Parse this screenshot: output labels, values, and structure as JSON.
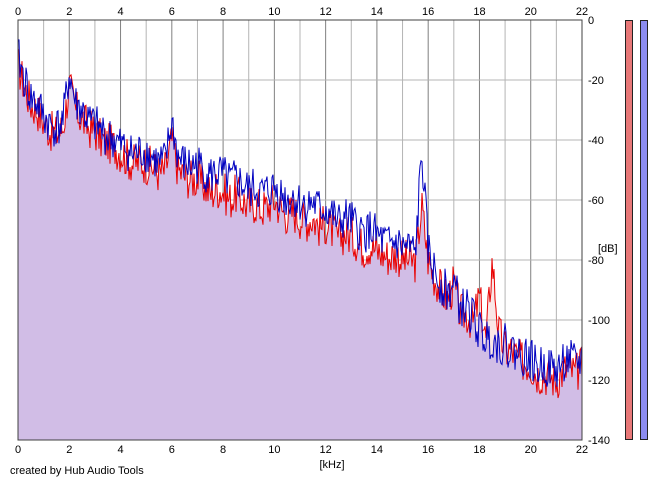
{
  "footer": {
    "credit": "created by Hub Audio Tools"
  },
  "meters": {
    "left_color": "#e87878",
    "right_color": "#8c8cf0"
  },
  "colors": {
    "left": "#e80000",
    "right": "#0000c0",
    "fill": "#c0c0ff",
    "left_fill": "#f0b8b8",
    "grid": "#b4b4b4",
    "grid_major": "#808080"
  },
  "chart_data": {
    "type": "line",
    "xlabel": "[kHz]",
    "ylabel": "[dB]",
    "xlim": [
      0,
      22
    ],
    "ylim": [
      -140,
      0
    ],
    "x_ticks": [
      "0",
      "2",
      "4",
      "6",
      "8",
      "10",
      "12",
      "14",
      "16",
      "18",
      "20",
      "22"
    ],
    "y_ticks": [
      "0",
      "-20",
      "-40",
      "-60",
      "-80",
      "-100",
      "-120",
      "-140"
    ],
    "grid": true,
    "area_fill": true,
    "series": [
      {
        "x": [
          0,
          0.25,
          0.5,
          0.75,
          1,
          1.25,
          1.5,
          1.75,
          2,
          2.25,
          2.5,
          2.75,
          3,
          3.25,
          3.5,
          3.75,
          4,
          4.25,
          4.5,
          4.75,
          5,
          5.25,
          5.5,
          5.75,
          6,
          6.25,
          6.5,
          6.75,
          7,
          7.25,
          7.5,
          7.75,
          8,
          8.25,
          8.5,
          8.75,
          9,
          9.25,
          9.5,
          9.75,
          10,
          10.25,
          10.5,
          10.75,
          11,
          11.25,
          11.5,
          11.75,
          12,
          12.25,
          12.5,
          12.75,
          13,
          13.25,
          13.5,
          13.75,
          14,
          14.25,
          14.5,
          14.75,
          15,
          15.25,
          15.5,
          15.75,
          16,
          16.25,
          16.5,
          16.75,
          17,
          17.25,
          17.5,
          17.75,
          18,
          18.25,
          18.5,
          18.75,
          19,
          19.25,
          19.5,
          19.75,
          20,
          20.25,
          20.5,
          20.75,
          21,
          21.25,
          21.5,
          21.75,
          22
        ],
        "values": [
          -15,
          -22,
          -28,
          -30,
          -34,
          -37,
          -38,
          -36,
          -22,
          -30,
          -33,
          -36,
          -37,
          -40,
          -41,
          -42,
          -44,
          -46,
          -48,
          -47,
          -48,
          -49,
          -51,
          -50,
          -40,
          -50,
          -52,
          -53,
          -53,
          -55,
          -58,
          -56,
          -57,
          -60,
          -58,
          -60,
          -62,
          -61,
          -63,
          -62,
          -60,
          -63,
          -65,
          -64,
          -66,
          -67,
          -66,
          -69,
          -68,
          -70,
          -73,
          -71,
          -72,
          -74,
          -76,
          -75,
          -77,
          -78,
          -79,
          -78,
          -80,
          -80,
          -81,
          -62,
          -80,
          -86,
          -90,
          -93,
          -88,
          -98,
          -98,
          -101,
          -92,
          -107,
          -80,
          -104,
          -110,
          -110,
          -113,
          -114,
          -115,
          -118,
          -118,
          -119,
          -120,
          -117,
          -116,
          -118,
          -115
        ]
      },
      {
        "x": [
          0,
          0.25,
          0.5,
          0.75,
          1,
          1.25,
          1.5,
          1.75,
          2,
          2.25,
          2.5,
          2.75,
          3,
          3.25,
          3.5,
          3.75,
          4,
          4.25,
          4.5,
          4.75,
          5,
          5.25,
          5.5,
          5.75,
          6,
          6.25,
          6.5,
          6.75,
          7,
          7.25,
          7.5,
          7.75,
          8,
          8.25,
          8.5,
          8.75,
          9,
          9.25,
          9.5,
          9.75,
          10,
          10.25,
          10.5,
          10.75,
          11,
          11.25,
          11.5,
          11.75,
          12,
          12.25,
          12.5,
          12.75,
          13,
          13.25,
          13.5,
          13.75,
          14,
          14.25,
          14.5,
          14.75,
          15,
          15.25,
          15.5,
          15.75,
          16,
          16.25,
          16.5,
          16.75,
          17,
          17.25,
          17.5,
          17.75,
          18,
          18.25,
          18.5,
          18.75,
          19,
          19.25,
          19.5,
          19.75,
          20,
          20.25,
          20.5,
          20.75,
          21,
          21.25,
          21.5,
          21.75,
          22
        ],
        "values": [
          -12,
          -20,
          -26,
          -28,
          -32,
          -35,
          -36,
          -34,
          -18,
          -28,
          -30,
          -34,
          -35,
          -37,
          -39,
          -40,
          -42,
          -43,
          -45,
          -44,
          -44,
          -46,
          -48,
          -47,
          -34,
          -46,
          -48,
          -49,
          -48,
          -50,
          -52,
          -51,
          -52,
          -54,
          -53,
          -55,
          -57,
          -56,
          -58,
          -57,
          -56,
          -58,
          -60,
          -59,
          -61,
          -62,
          -61,
          -63,
          -63,
          -65,
          -68,
          -66,
          -67,
          -70,
          -71,
          -70,
          -72,
          -74,
          -75,
          -74,
          -76,
          -76,
          -78,
          -44,
          -77,
          -84,
          -88,
          -91,
          -88,
          -96,
          -96,
          -99,
          -104,
          -106,
          -106,
          -108,
          -108,
          -110,
          -111,
          -112,
          -113,
          -116,
          -115,
          -116,
          -117,
          -114,
          -113,
          -115,
          -113
        ]
      }
    ]
  }
}
